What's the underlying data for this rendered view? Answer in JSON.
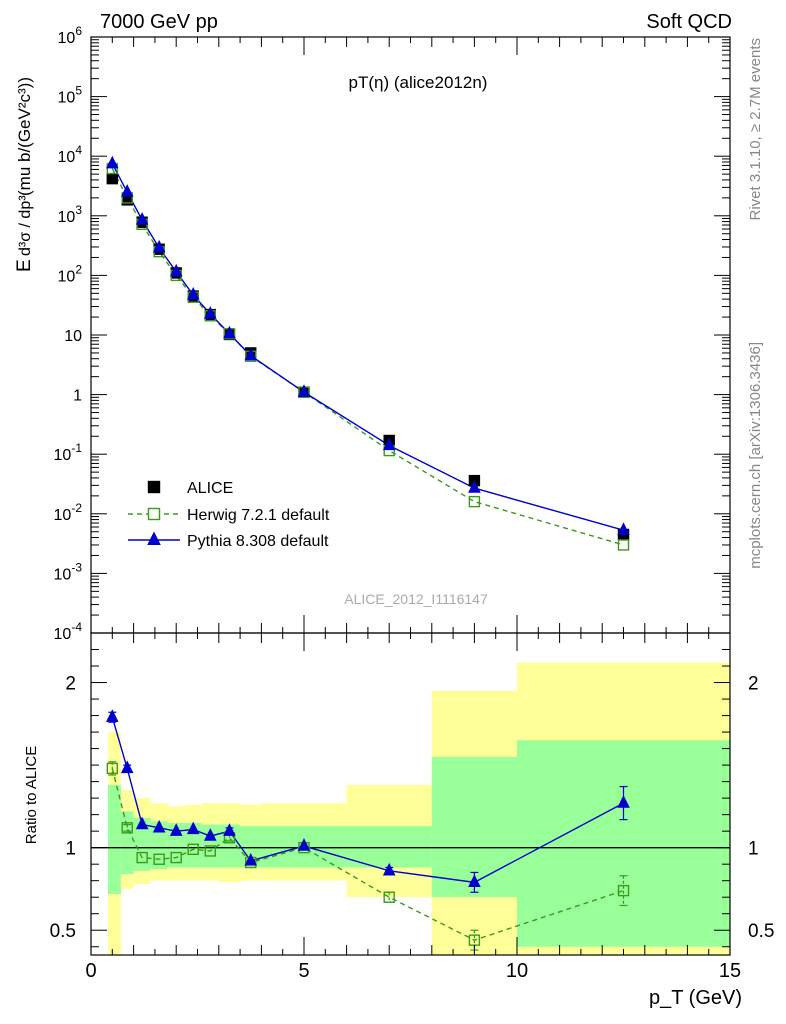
{
  "header": {
    "left": "7000 GeV pp",
    "right": "Soft QCD",
    "side_top": "Rivet 3.1.10, ≥ 2.7M events",
    "side_bottom": "mcplots.cern.ch [arXiv:1306.3436]"
  },
  "main": {
    "title": "pT(η) (alice2012n)",
    "watermark": "ALICE_2012_I1116147",
    "ylabel_E": "E",
    "ylabel_frac": "d³σ / dp³",
    "ylabel_units": "(mu b/(GeV²c³))"
  },
  "ratio": {
    "ylabel": "Ratio to ALICE"
  },
  "xaxis": {
    "label": "p_T (GeV)"
  },
  "legend": [
    {
      "label": "ALICE"
    },
    {
      "label": "Herwig 7.2.1 default"
    },
    {
      "label": "Pythia 8.308 default"
    }
  ],
  "colors": {
    "data": "#000000",
    "herwig": "#3a9a1a",
    "pythia": "#0000cc",
    "band_inner": "#99ff99",
    "band_outer": "#ffff99"
  },
  "chart_data": [
    {
      "type": "scatter",
      "panel": "main",
      "yscale": "log",
      "xlim": [
        0,
        15
      ],
      "ylim": [
        0.0001,
        1000000
      ],
      "ytick_labels": [
        "10^-4",
        "10^-3",
        "10^-2",
        "10^-1",
        "1",
        "10",
        "10^2",
        "10^3",
        "10^4",
        "10^5",
        "10^6"
      ],
      "x": [
        0.5,
        0.85,
        1.2,
        1.6,
        2.0,
        2.4,
        2.8,
        3.25,
        3.75,
        5.0,
        7.0,
        9.0,
        12.5
      ],
      "series": [
        {
          "name": "ALICE",
          "values": [
            4200,
            1850,
            780,
            275,
            110,
            45,
            22,
            10.2,
            5.0,
            1.1,
            0.17,
            0.036,
            0.0045
          ]
        },
        {
          "name": "Herwig 7.2.1 default",
          "values": [
            6200,
            2000,
            720,
            250,
            100,
            43,
            21,
            10.5,
            4.4,
            1.1,
            0.115,
            0.016,
            0.003
          ]
        },
        {
          "name": "Pythia 8.308 default",
          "values": [
            7500,
            2500,
            850,
            290,
            115,
            47,
            22.5,
            10.5,
            4.5,
            1.1,
            0.14,
            0.027,
            0.0053
          ]
        }
      ]
    },
    {
      "type": "line",
      "panel": "ratio",
      "xlim": [
        0,
        15
      ],
      "ylim": [
        0.35,
        2.3
      ],
      "xtick_labels": [
        "0",
        "5",
        "10",
        "15"
      ],
      "ytick_labels": [
        "0.5",
        "1",
        "2"
      ],
      "bin_edges": [
        0.4,
        0.7,
        1.0,
        1.4,
        1.8,
        2.2,
        2.6,
        3.0,
        3.5,
        4.0,
        6.0,
        8.0,
        10.0,
        15.0
      ],
      "band_inner": {
        "low": [
          0.72,
          0.84,
          0.86,
          0.87,
          0.88,
          0.88,
          0.88,
          0.88,
          0.88,
          0.88,
          0.88,
          0.7,
          0.4
        ],
        "high": [
          1.38,
          1.22,
          1.18,
          1.16,
          1.15,
          1.15,
          1.14,
          1.14,
          1.13,
          1.13,
          1.13,
          1.55,
          1.65
        ]
      },
      "band_outer": {
        "low": [
          0.35,
          0.75,
          0.78,
          0.8,
          0.8,
          0.8,
          0.8,
          0.79,
          0.8,
          0.8,
          0.7,
          0.35,
          0.35
        ],
        "high": [
          1.7,
          1.35,
          1.3,
          1.27,
          1.25,
          1.26,
          1.27,
          1.27,
          1.26,
          1.27,
          1.38,
          1.95,
          2.12
        ]
      },
      "x": [
        0.5,
        0.85,
        1.2,
        1.6,
        2.0,
        2.4,
        2.8,
        3.25,
        3.75,
        5.0,
        7.0,
        9.0,
        12.5
      ],
      "series": [
        {
          "name": "Herwig 7.2.1 default",
          "values": [
            1.48,
            1.12,
            0.94,
            0.93,
            0.94,
            0.99,
            0.98,
            1.06,
            0.91,
            1.0,
            0.7,
            0.44,
            0.74
          ],
          "err": [
            0.04,
            0.02,
            0.01,
            0.01,
            0.01,
            0.01,
            0.01,
            0.02,
            0.01,
            0.01,
            0.03,
            0.06,
            0.09
          ]
        },
        {
          "name": "Pythia 8.308 default",
          "values": [
            1.79,
            1.48,
            1.14,
            1.12,
            1.1,
            1.11,
            1.07,
            1.1,
            0.92,
            1.01,
            0.86,
            0.79,
            1.27
          ],
          "err": [
            0.03,
            0.02,
            0.01,
            0.01,
            0.01,
            0.01,
            0.01,
            0.02,
            0.01,
            0.01,
            0.02,
            0.06,
            0.1
          ]
        }
      ]
    }
  ]
}
